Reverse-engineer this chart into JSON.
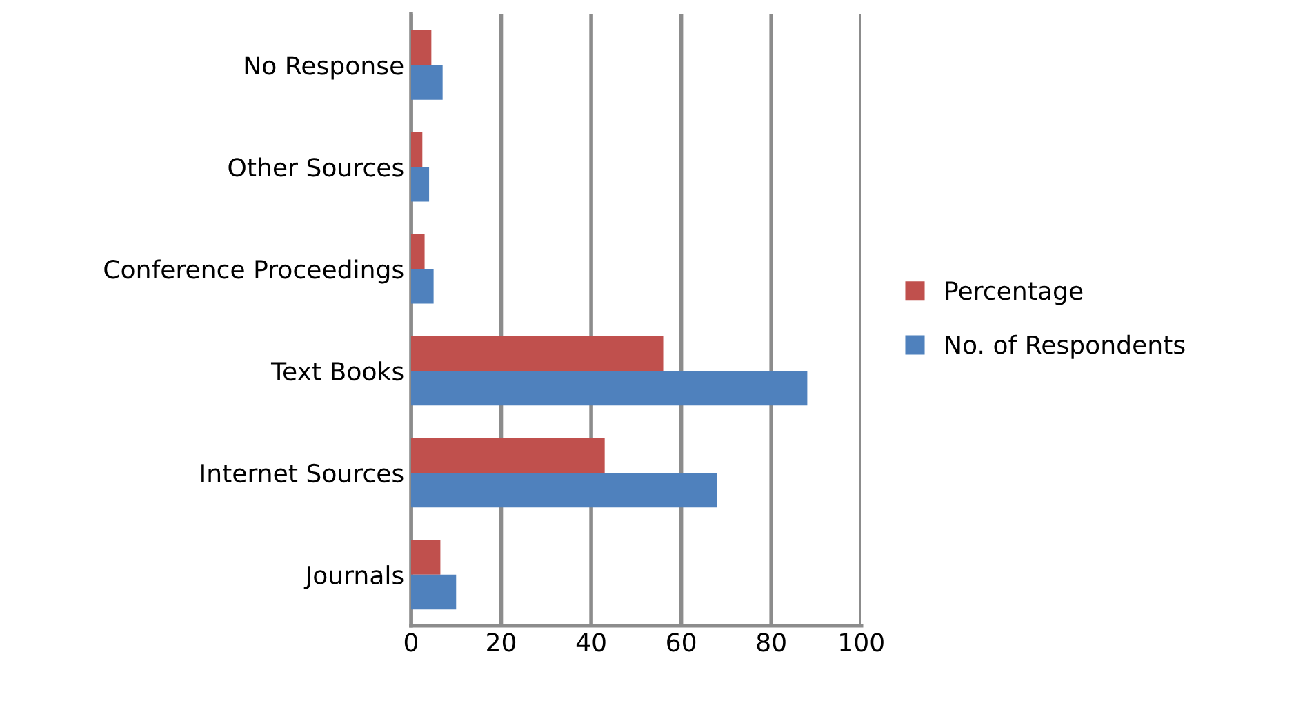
{
  "chart_data": {
    "type": "bar",
    "orientation": "horizontal",
    "categories": [
      "No Response",
      "Other Sources",
      "Conference Proceedings",
      "Text Books",
      "Internet Sources",
      "Journals"
    ],
    "series": [
      {
        "name": "Percentage",
        "color": "#c0504d",
        "values": [
          4.5,
          2.5,
          3,
          56,
          43,
          6.5
        ]
      },
      {
        "name": "No. of Respondents",
        "color": "#4f81bd",
        "values": [
          7,
          4,
          5,
          88,
          68,
          10
        ]
      }
    ],
    "xlim": [
      0,
      100
    ],
    "xticks": [
      0,
      20,
      40,
      60,
      80,
      100
    ],
    "grid": "x",
    "legend": "right"
  }
}
